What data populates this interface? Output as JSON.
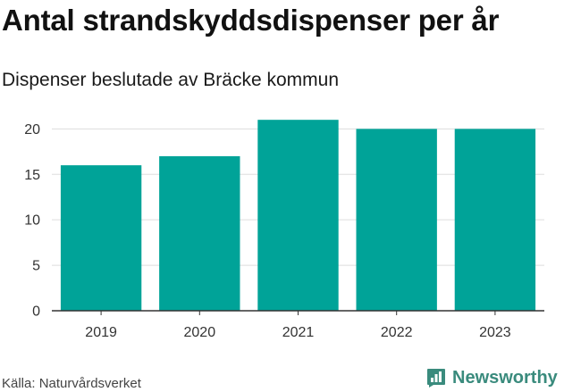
{
  "title": "Antal strandskyddsdispenser per år",
  "subtitle": "Dispenser beslutade av Bräcke kommun",
  "source": "Källa: Naturvårdsverket",
  "brand": {
    "name": "Newsworthy",
    "icon": "newsworthy-logo-icon",
    "color": "#3a8b7d"
  },
  "colors": {
    "bar": "#00a398",
    "grid": "#dddddd",
    "axis": "#333333"
  },
  "chart_data": {
    "type": "bar",
    "title": "Antal strandskyddsdispenser per år",
    "subtitle": "Dispenser beslutade av Bräcke kommun",
    "xlabel": "",
    "ylabel": "",
    "categories": [
      "2019",
      "2020",
      "2021",
      "2022",
      "2023"
    ],
    "values": [
      16,
      17,
      21,
      20,
      20
    ],
    "ylim": [
      0,
      22
    ],
    "yticks": [
      0,
      5,
      10,
      15,
      20
    ],
    "grid": true,
    "legend": "none"
  }
}
